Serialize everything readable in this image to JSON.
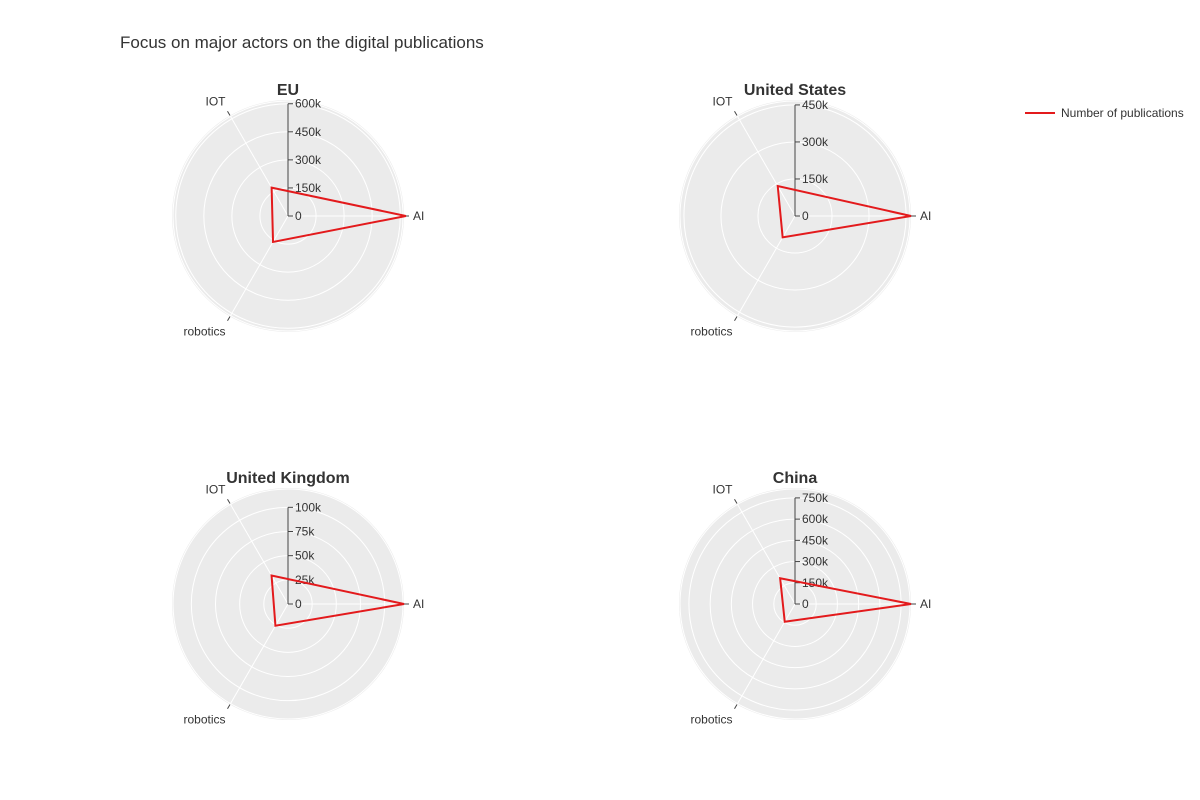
{
  "page": {
    "title": "Focus on major actors on the digital publications"
  },
  "legend": {
    "label": "Number of publications",
    "color": "#e31a1c"
  },
  "colors": {
    "polar_bg": "#ebebeb",
    "grid": "#ffffff",
    "series": "#e31a1c",
    "text": "#333333"
  },
  "chart_data": [
    {
      "type": "radar",
      "title": "EU",
      "axes": [
        "AI",
        "IOT",
        "robotics"
      ],
      "radial_ticks": [
        0,
        150000,
        300000,
        450000,
        600000
      ],
      "radial_tick_labels": [
        "0",
        "150k",
        "300k",
        "450k",
        "600k"
      ],
      "range": [
        0,
        620000
      ],
      "series": [
        {
          "name": "Number of publications",
          "values": [
            630000,
            175000,
            160000
          ]
        }
      ]
    },
    {
      "type": "radar",
      "title": "United States",
      "axes": [
        "AI",
        "IOT",
        "robotics"
      ],
      "radial_ticks": [
        0,
        150000,
        300000,
        450000
      ],
      "radial_tick_labels": [
        "0",
        "150k",
        "300k",
        "450k"
      ],
      "range": [
        0,
        470000
      ],
      "series": [
        {
          "name": "Number of publications",
          "values": [
            470000,
            140000,
            100000
          ]
        }
      ]
    },
    {
      "type": "radar",
      "title": "United Kingdom",
      "axes": [
        "AI",
        "IOT",
        "robotics"
      ],
      "radial_ticks": [
        0,
        25000,
        50000,
        75000,
        100000
      ],
      "radial_tick_labels": [
        "0",
        "25k",
        "50k",
        "75k",
        "100k"
      ],
      "range": [
        0,
        120000
      ],
      "series": [
        {
          "name": "Number of publications",
          "values": [
            120000,
            34000,
            26000
          ]
        }
      ]
    },
    {
      "type": "radar",
      "title": "China",
      "axes": [
        "AI",
        "IOT",
        "robotics"
      ],
      "radial_ticks": [
        0,
        150000,
        300000,
        450000,
        600000,
        750000
      ],
      "radial_tick_labels": [
        "0",
        "150k",
        "300k",
        "450k",
        "600k",
        "750k"
      ],
      "range": [
        0,
        820000
      ],
      "series": [
        {
          "name": "Number of publications",
          "values": [
            820000,
            210000,
            145000
          ]
        }
      ]
    }
  ]
}
